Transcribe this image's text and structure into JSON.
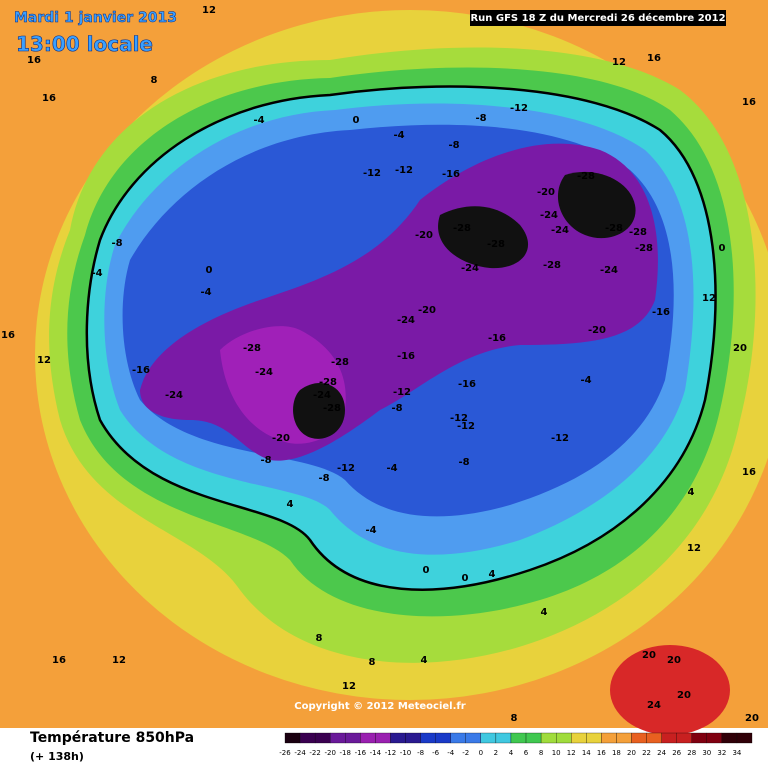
{
  "header": {
    "date": "Mardi 1 janvier 2013",
    "time": "13:00 locale",
    "run": "Run GFS 18 Z du Mercredi 26 décembre 2012"
  },
  "copyright": "Copyright © 2012 Meteociel.fr",
  "footer": {
    "title": "Température 850hPa",
    "lead": "(+ 138h)"
  },
  "legend": {
    "labels": [
      -26,
      -24,
      -22,
      -20,
      -18,
      -16,
      -14,
      -12,
      -10,
      -8,
      -6,
      -4,
      -2,
      0,
      2,
      4,
      6,
      8,
      10,
      12,
      14,
      16,
      18,
      20,
      22,
      24,
      26,
      28,
      30,
      32,
      34
    ]
  },
  "map": {
    "labels": [
      "12",
      "16",
      "16",
      "8",
      "12",
      "16",
      "16",
      "0",
      "-12",
      "-8",
      "-4",
      "-8",
      "-4",
      "-12",
      "-12",
      "-16",
      "-28",
      "-20",
      "-24",
      "-28",
      "-28",
      "-24",
      "-28",
      "-28",
      "-20",
      "-24",
      "-28",
      "-28",
      "-24",
      "0",
      "-8",
      "-4",
      "0",
      "-4",
      "-20",
      "-24",
      "-16",
      "-16",
      "-20",
      "-28",
      "-24",
      "-16",
      "-24",
      "-16",
      "-28",
      "-28",
      "-24",
      "-28",
      "-12",
      "-16",
      "-8",
      "-4",
      "-12",
      "-12",
      "-12",
      "-20",
      "-8",
      "-12",
      "-8",
      "-4",
      "-8",
      "4",
      "12",
      "16",
      "20",
      "12",
      "16",
      "4",
      "-4",
      "0",
      "0",
      "4",
      "8",
      "12",
      "16",
      "12",
      "20",
      "20",
      "24",
      "20",
      "20",
      "8",
      "12",
      "4",
      "4",
      "8"
    ]
  }
}
